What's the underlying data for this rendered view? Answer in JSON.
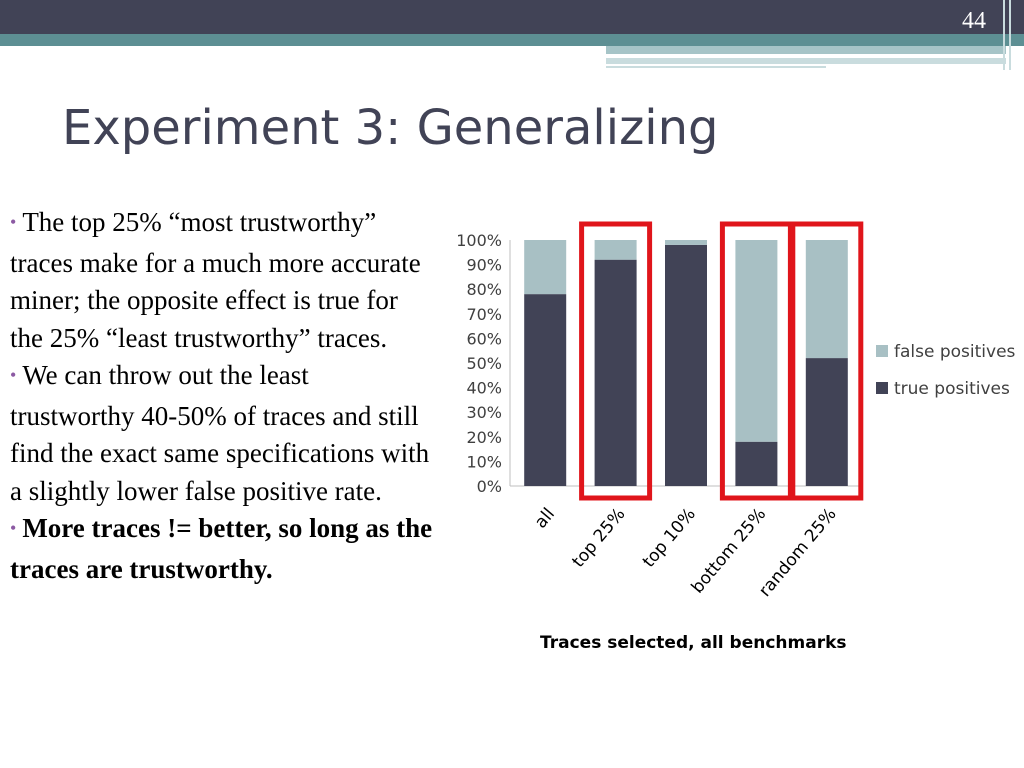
{
  "slide": {
    "number": "44",
    "title": "Experiment 3: Generalizing",
    "bullets": [
      {
        "text": "The top 25% “most trustworthy” traces make for a much more accurate miner; the opposite effect is true for the 25% “least trustworthy” traces.",
        "bold": false
      },
      {
        "text": "We can throw out the least trustworthy 40-50% of traces and still find the exact same specifications with a slightly lower false positive rate.",
        "bold": false
      },
      {
        "text": "More traces != better, so long as the traces are trustworthy.",
        "bold": true
      }
    ]
  },
  "chart_data": {
    "type": "bar",
    "stacked": true,
    "percent": true,
    "categories": [
      "all",
      "top 25%",
      "top 10%",
      "bottom 25%",
      "random 25%"
    ],
    "series": [
      {
        "name": "true positives",
        "values": [
          78,
          92,
          98,
          18,
          52
        ],
        "color": "#414356"
      },
      {
        "name": "false positives",
        "values": [
          22,
          8,
          2,
          82,
          48
        ],
        "color": "#a8c0c4"
      }
    ],
    "yticks": [
      "0%",
      "10%",
      "20%",
      "30%",
      "40%",
      "50%",
      "60%",
      "70%",
      "80%",
      "90%",
      "100%"
    ],
    "ylim": [
      0,
      100
    ],
    "xlabel": "Traces selected, all benchmarks",
    "legend": "right",
    "highlighted_categories": [
      "top 25%",
      "bottom 25%",
      "random 25%"
    ],
    "highlight_color": "#e0151b"
  }
}
